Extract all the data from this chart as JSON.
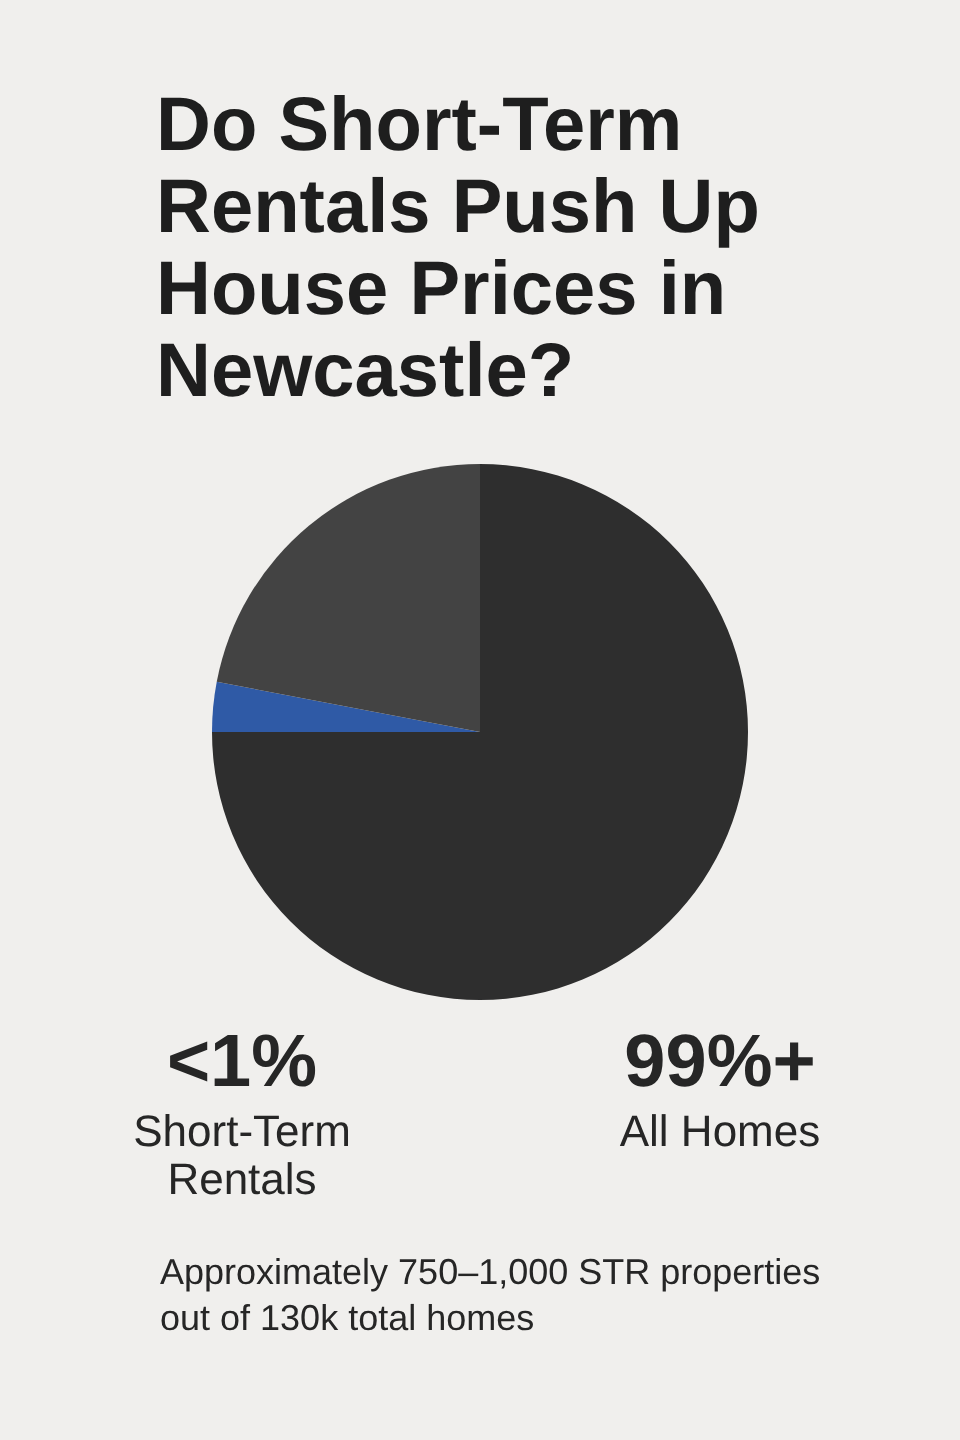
{
  "chart_data": {
    "type": "pie",
    "title": "Do Short-Term Rentals Push Up House Prices in Newcastle?",
    "categories": [
      null,
      null,
      null
    ],
    "values": [
      75,
      3,
      22
    ],
    "colors": [
      "#2e2e2e",
      "#2f5aa6",
      "#434343"
    ],
    "annotations": [
      "<1%",
      "Short-Term Rentals",
      "99%+",
      "All Homes",
      "Approximately 750–1,000 STR properties out of 130k total homes"
    ]
  }
}
